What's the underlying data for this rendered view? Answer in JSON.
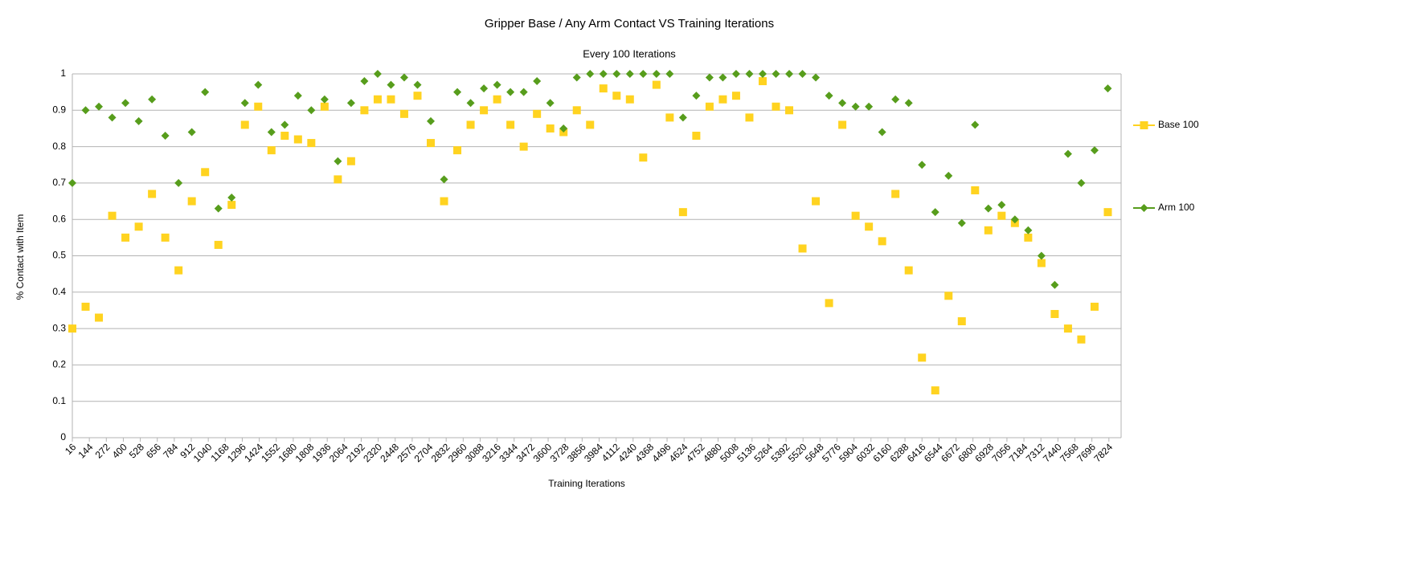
{
  "chart_data": {
    "type": "scatter",
    "title": "Gripper Base / Any Arm Contact VS Training Iterations",
    "subtitle": "Every 100 Iterations",
    "x_label": "Training Iterations",
    "y_label": "% Contact with Item",
    "x": [
      16,
      116,
      216,
      316,
      416,
      516,
      616,
      716,
      816,
      916,
      1016,
      1116,
      1216,
      1316,
      1416,
      1516,
      1616,
      1716,
      1816,
      1916,
      2016,
      2116,
      2216,
      2316,
      2416,
      2516,
      2616,
      2716,
      2816,
      2916,
      3016,
      3116,
      3216,
      3316,
      3416,
      3516,
      3616,
      3716,
      3816,
      3916,
      4016,
      4116,
      4216,
      4316,
      4416,
      4516,
      4616,
      4716,
      4816,
      4916,
      5016,
      5116,
      5216,
      5316,
      5416,
      5516,
      5616,
      5716,
      5816,
      5916,
      6016,
      6116,
      6216,
      6316,
      6416,
      6516,
      6616,
      6716,
      6816,
      6916,
      7016,
      7116,
      7216,
      7316,
      7416,
      7516,
      7616,
      7716,
      7816
    ],
    "series": [
      {
        "name": "Base 100",
        "color": "#ffd320",
        "marker": "square",
        "values": [
          0.3,
          0.36,
          0.33,
          0.61,
          0.55,
          0.58,
          0.67,
          0.55,
          0.46,
          0.65,
          0.73,
          0.53,
          0.64,
          0.86,
          0.91,
          0.79,
          0.83,
          0.82,
          0.81,
          0.91,
          0.71,
          0.76,
          0.9,
          0.93,
          0.93,
          0.89,
          0.94,
          0.81,
          0.65,
          0.79,
          0.86,
          0.9,
          0.93,
          0.86,
          0.8,
          0.89,
          0.85,
          0.84,
          0.9,
          0.86,
          0.96,
          0.94,
          0.93,
          0.77,
          0.97,
          0.88,
          0.62,
          0.83,
          0.91,
          0.93,
          0.94,
          0.88,
          0.98,
          0.91,
          0.9,
          0.52,
          0.65,
          0.37,
          0.86,
          0.61,
          0.58,
          0.54,
          0.67,
          0.46,
          0.22,
          0.13,
          0.39,
          0.32,
          0.68,
          0.57,
          0.61,
          0.59,
          0.55,
          0.48,
          0.34,
          0.3,
          0.27,
          0.36,
          0.62
        ]
      },
      {
        "name": "Arm 100",
        "color": "#579d1c",
        "marker": "diamond",
        "values": [
          0.7,
          0.9,
          0.91,
          0.88,
          0.92,
          0.87,
          0.93,
          0.83,
          0.7,
          0.84,
          0.95,
          0.63,
          0.66,
          0.92,
          0.97,
          0.84,
          0.86,
          0.94,
          0.9,
          0.93,
          0.76,
          0.92,
          0.98,
          1,
          0.97,
          0.99,
          0.97,
          0.87,
          0.71,
          0.95,
          0.92,
          0.96,
          0.97,
          0.95,
          0.95,
          0.98,
          0.92,
          0.85,
          0.99,
          1,
          1,
          1,
          1,
          1,
          1,
          1,
          0.88,
          0.94,
          0.99,
          0.99,
          1,
          1,
          1,
          1,
          1,
          1,
          0.99,
          0.94,
          0.92,
          0.91,
          0.91,
          0.84,
          0.93,
          0.92,
          0.75,
          0.62,
          0.72,
          0.59,
          0.86,
          0.63,
          0.64,
          0.6,
          0.57,
          0.5,
          0.42,
          0.78,
          0.7,
          0.79,
          0.96
        ]
      }
    ],
    "xlim": [
      16,
      7916
    ],
    "xticks": [
      16,
      144,
      272,
      400,
      528,
      656,
      784,
      912,
      1040,
      1168,
      1296,
      1424,
      1552,
      1680,
      1808,
      1936,
      2064,
      2192,
      2320,
      2448,
      2576,
      2704,
      2832,
      2960,
      3088,
      3216,
      3344,
      3472,
      3600,
      3728,
      3856,
      3984,
      4112,
      4240,
      4368,
      4496,
      4624,
      4752,
      4880,
      5008,
      5136,
      5264,
      5392,
      5520,
      5648,
      5776,
      5904,
      6032,
      6160,
      6288,
      6416,
      6544,
      6672,
      6800,
      6928,
      7056,
      7184,
      7312,
      7440,
      7568,
      7696,
      7824
    ],
    "ylim": [
      0,
      1
    ],
    "yticks": [
      0,
      0.1,
      0.2,
      0.3,
      0.4,
      0.5,
      0.6,
      0.7,
      0.8,
      0.9,
      1
    ],
    "grid": true,
    "legend": "right"
  }
}
